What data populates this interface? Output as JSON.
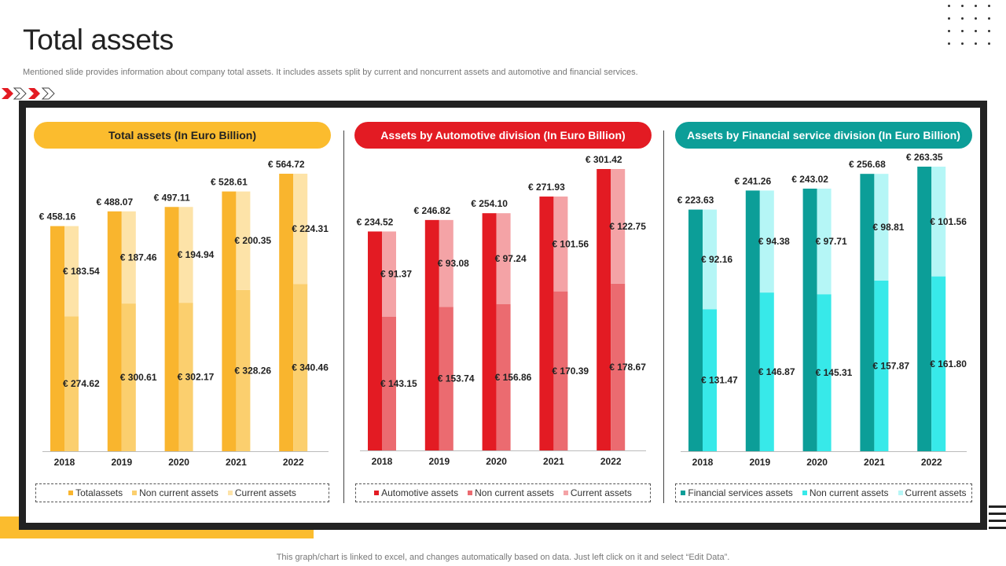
{
  "page": {
    "title": "Total assets",
    "subtitle": "Mentioned slide provides information about company total assets. It includes assets split by current and noncurrent assets and automotive and financial services.",
    "footer": "This graph/chart is linked to excel,  and changes automatically based on data. Just left click on it and select “Edit Data”."
  },
  "colors": {
    "yellow_dark": "#F9B52E",
    "yellow_mid": "#FBCF6E",
    "yellow_light": "#FDE3A8",
    "red_dark": "#E31B23",
    "red_mid": "#EB6B70",
    "red_light": "#F4A3A6",
    "teal_dark": "#0C9E98",
    "teal_mid": "#37E9E9",
    "teal_light": "#B5F6F6"
  },
  "chart_data": [
    {
      "type": "bar",
      "title": "Total assets (In Euro Billion)",
      "categories": [
        "2018",
        "2019",
        "2020",
        "2021",
        "2022"
      ],
      "series": [
        {
          "name": "Totalassets",
          "values": [
            458.16,
            488.07,
            497.11,
            528.61,
            564.72
          ],
          "labels": [
            "€ 458.16",
            "€ 488.07",
            "€ 497.11",
            "€ 528.61",
            "€ 564.72"
          ]
        },
        {
          "name": "Non current assets",
          "values": [
            274.62,
            300.61,
            302.17,
            328.26,
            340.46
          ],
          "labels": [
            "€ 274.62",
            "€ 300.61",
            "€ 302.17",
            "€ 328.26",
            "€ 340.46"
          ]
        },
        {
          "name": "Current assets",
          "values": [
            183.54,
            187.46,
            194.94,
            200.35,
            224.31
          ],
          "labels": [
            "€ 183.54",
            "€ 187.46",
            "€ 194.94",
            "€ 200.35",
            "€ 224.31"
          ]
        }
      ],
      "ylim": [
        0,
        600
      ],
      "legend": "bottom"
    },
    {
      "type": "bar",
      "title": "Assets by Automotive division (In Euro Billion)",
      "categories": [
        "2018",
        "2019",
        "2020",
        "2021",
        "2022"
      ],
      "series": [
        {
          "name": "Automotive assets",
          "values": [
            234.52,
            246.82,
            254.1,
            271.93,
            301.42
          ],
          "labels": [
            "€ 234.52",
            "€ 246.82",
            "€ 254.10",
            "€ 271.93",
            "€ 301.42"
          ]
        },
        {
          "name": "Non current assets",
          "values": [
            143.15,
            153.74,
            156.86,
            170.39,
            178.67
          ],
          "labels": [
            "€ 143.15",
            "€ 153.74",
            "€ 156.86",
            "€ 170.39",
            "€ 178.67"
          ]
        },
        {
          "name": "Current assets",
          "values": [
            91.37,
            93.08,
            97.24,
            101.56,
            122.75
          ],
          "labels": [
            "€ 91.37",
            "€ 93.08",
            "€ 97.24",
            "€ 101.56",
            "€ 122.75"
          ]
        }
      ],
      "ylim": [
        0,
        330
      ],
      "legend": "bottom"
    },
    {
      "type": "bar",
      "title": "Assets by Financial service division (In Euro Billion)",
      "categories": [
        "2018",
        "2019",
        "2020",
        "2021",
        "2022"
      ],
      "series": [
        {
          "name": "Financial services assets",
          "values": [
            223.63,
            241.26,
            243.02,
            256.68,
            263.35
          ],
          "labels": [
            "€ 223.63",
            "€ 241.26",
            "€ 243.02",
            "€ 256.68",
            "€ 263.35"
          ]
        },
        {
          "name": "Non current assets",
          "values": [
            131.47,
            146.87,
            145.31,
            157.87,
            161.8
          ],
          "labels": [
            "€ 131.47",
            "€ 146.87",
            "€ 145.31",
            "€ 157.87",
            "€ 161.80"
          ]
        },
        {
          "name": "Current assets",
          "values": [
            92.16,
            94.38,
            97.71,
            98.81,
            101.56
          ],
          "labels": [
            "€ 92.16",
            "€ 94.38",
            "€ 97.71",
            "€ 98.81",
            "€ 101.56"
          ]
        }
      ],
      "ylim": [
        0,
        300
      ],
      "legend": "bottom"
    }
  ]
}
